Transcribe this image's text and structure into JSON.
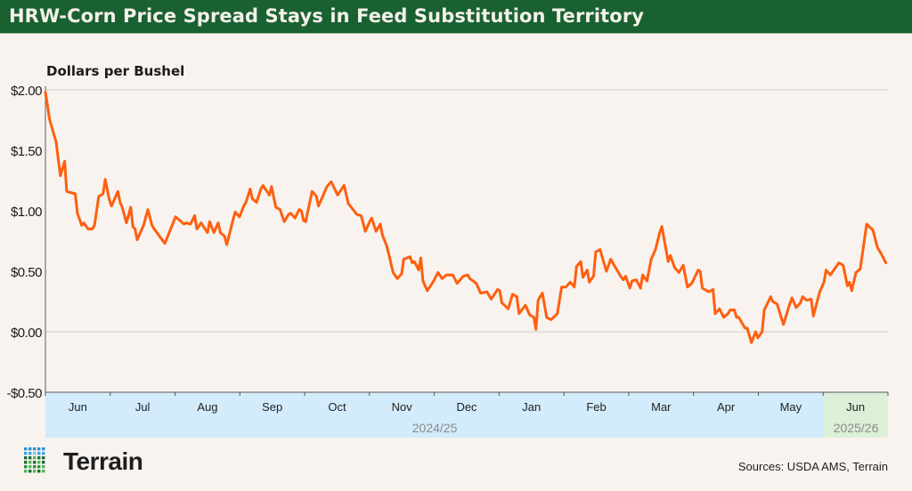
{
  "header": {
    "title": "HRW-Corn Price Spread Stays in Feed Substitution Territory"
  },
  "footer": {
    "logo_text": "Terrain",
    "sources": "Sources: USDA AMS, Terrain"
  },
  "colors": {
    "line": "#ff5f0f",
    "title_bar": "#1a6131",
    "band_2024": "#d2ecfb",
    "band_2025": "#dcf0d8",
    "grid": "#dedad6",
    "background": "#f8f3ef"
  },
  "chart_data": {
    "type": "line",
    "title": "HRW-Corn Price Spread Stays in Feed Substitution Territory",
    "ylabel": "Dollars per Bushel",
    "ylim": [
      -0.5,
      2.0
    ],
    "yticks": [
      2.0,
      1.5,
      1.0,
      0.5,
      0.0,
      -0.5
    ],
    "ytick_labels": [
      "$2.00",
      "$1.50",
      "$1.00",
      "$0.50",
      "$0.00",
      "-$0.50"
    ],
    "gridlines": [
      2.0,
      0.0
    ],
    "xlim": [
      "2024-06-01",
      "2025-07-01"
    ],
    "month_labels": [
      "Jun",
      "Jul",
      "Aug",
      "Sep",
      "Oct",
      "Nov",
      "Dec",
      "Jan",
      "Feb",
      "Mar",
      "Apr",
      "May",
      "Jun"
    ],
    "marketing_years": [
      {
        "label": "2024/25",
        "start": "2024-06-01",
        "end": "2025-06-01"
      },
      {
        "label": "2025/26",
        "start": "2025-06-01",
        "end": "2025-07-01"
      }
    ],
    "points": [
      [
        "2024-06-01",
        1.98
      ],
      [
        "2024-06-03",
        1.75
      ],
      [
        "2024-06-06",
        1.57
      ],
      [
        "2024-06-08",
        1.29
      ],
      [
        "2024-06-10",
        1.41
      ],
      [
        "2024-06-11",
        1.16
      ],
      [
        "2024-06-15",
        1.14
      ],
      [
        "2024-06-16",
        0.98
      ],
      [
        "2024-06-18",
        0.88
      ],
      [
        "2024-06-19",
        0.9
      ],
      [
        "2024-06-21",
        0.85
      ],
      [
        "2024-06-23",
        0.85
      ],
      [
        "2024-06-24",
        0.88
      ],
      [
        "2024-06-26",
        1.12
      ],
      [
        "2024-06-28",
        1.14
      ],
      [
        "2024-06-29",
        1.26
      ],
      [
        "2024-07-01",
        1.09
      ],
      [
        "2024-07-02",
        1.04
      ],
      [
        "2024-07-05",
        1.16
      ],
      [
        "2024-07-06",
        1.07
      ],
      [
        "2024-07-07",
        1.03
      ],
      [
        "2024-07-09",
        0.9
      ],
      [
        "2024-07-11",
        1.03
      ],
      [
        "2024-07-12",
        0.87
      ],
      [
        "2024-07-13",
        0.85
      ],
      [
        "2024-07-14",
        0.76
      ],
      [
        "2024-07-17",
        0.88
      ],
      [
        "2024-07-19",
        1.01
      ],
      [
        "2024-07-21",
        0.88
      ],
      [
        "2024-07-22",
        0.85
      ],
      [
        "2024-07-27",
        0.73
      ],
      [
        "2024-08-01",
        0.95
      ],
      [
        "2024-08-05",
        0.89
      ],
      [
        "2024-08-06",
        0.9
      ],
      [
        "2024-08-08",
        0.89
      ],
      [
        "2024-08-10",
        0.96
      ],
      [
        "2024-08-11",
        0.85
      ],
      [
        "2024-08-13",
        0.9
      ],
      [
        "2024-08-16",
        0.82
      ],
      [
        "2024-08-17",
        0.91
      ],
      [
        "2024-08-19",
        0.82
      ],
      [
        "2024-08-21",
        0.9
      ],
      [
        "2024-08-22",
        0.82
      ],
      [
        "2024-08-24",
        0.79
      ],
      [
        "2024-08-25",
        0.72
      ],
      [
        "2024-08-28",
        0.93
      ],
      [
        "2024-08-29",
        0.99
      ],
      [
        "2024-08-31",
        0.95
      ],
      [
        "2024-09-02",
        1.04
      ],
      [
        "2024-09-03",
        1.07
      ],
      [
        "2024-09-05",
        1.18
      ],
      [
        "2024-09-06",
        1.1
      ],
      [
        "2024-09-08",
        1.07
      ],
      [
        "2024-09-10",
        1.18
      ],
      [
        "2024-09-11",
        1.21
      ],
      [
        "2024-09-14",
        1.13
      ],
      [
        "2024-09-15",
        1.2
      ],
      [
        "2024-09-17",
        1.03
      ],
      [
        "2024-09-19",
        1.01
      ],
      [
        "2024-09-21",
        0.91
      ],
      [
        "2024-09-23",
        0.97
      ],
      [
        "2024-09-24",
        0.98
      ],
      [
        "2024-09-26",
        0.94
      ],
      [
        "2024-09-28",
        1.01
      ],
      [
        "2024-09-29",
        1.0
      ],
      [
        "2024-09-30",
        0.92
      ],
      [
        "2024-10-01",
        0.91
      ],
      [
        "2024-10-04",
        1.16
      ],
      [
        "2024-10-06",
        1.12
      ],
      [
        "2024-10-07",
        1.04
      ],
      [
        "2024-10-11",
        1.2
      ],
      [
        "2024-10-13",
        1.24
      ],
      [
        "2024-10-16",
        1.13
      ],
      [
        "2024-10-19",
        1.21
      ],
      [
        "2024-10-21",
        1.06
      ],
      [
        "2024-10-25",
        0.97
      ],
      [
        "2024-10-27",
        0.96
      ],
      [
        "2024-10-29",
        0.83
      ],
      [
        "2024-10-31",
        0.91
      ],
      [
        "2024-11-01",
        0.94
      ],
      [
        "2024-11-03",
        0.83
      ],
      [
        "2024-11-05",
        0.89
      ],
      [
        "2024-11-06",
        0.8
      ],
      [
        "2024-11-08",
        0.71
      ],
      [
        "2024-11-09",
        0.64
      ],
      [
        "2024-11-11",
        0.49
      ],
      [
        "2024-11-13",
        0.44
      ],
      [
        "2024-11-15",
        0.48
      ],
      [
        "2024-11-16",
        0.6
      ],
      [
        "2024-11-19",
        0.62
      ],
      [
        "2024-11-20",
        0.57
      ],
      [
        "2024-11-21",
        0.58
      ],
      [
        "2024-11-23",
        0.51
      ],
      [
        "2024-11-24",
        0.61
      ],
      [
        "2024-11-25",
        0.42
      ],
      [
        "2024-11-27",
        0.34
      ],
      [
        "2024-11-30",
        0.42
      ],
      [
        "2024-12-02",
        0.49
      ],
      [
        "2024-12-04",
        0.44
      ],
      [
        "2024-12-06",
        0.47
      ],
      [
        "2024-12-09",
        0.47
      ],
      [
        "2024-12-11",
        0.4
      ],
      [
        "2024-12-14",
        0.46
      ],
      [
        "2024-12-16",
        0.47
      ],
      [
        "2024-12-17",
        0.44
      ],
      [
        "2024-12-20",
        0.4
      ],
      [
        "2024-12-22",
        0.32
      ],
      [
        "2024-12-25",
        0.33
      ],
      [
        "2024-12-27",
        0.27
      ],
      [
        "2024-12-30",
        0.35
      ],
      [
        "2024-12-31",
        0.34
      ],
      [
        "2025-01-01",
        0.24
      ],
      [
        "2025-01-04",
        0.19
      ],
      [
        "2025-01-06",
        0.31
      ],
      [
        "2025-01-08",
        0.29
      ],
      [
        "2025-01-09",
        0.15
      ],
      [
        "2025-01-12",
        0.22
      ],
      [
        "2025-01-14",
        0.14
      ],
      [
        "2025-01-16",
        0.12
      ],
      [
        "2025-01-17",
        0.02
      ],
      [
        "2025-01-18",
        0.26
      ],
      [
        "2025-01-20",
        0.32
      ],
      [
        "2025-01-22",
        0.12
      ],
      [
        "2025-01-24",
        0.1
      ],
      [
        "2025-01-27",
        0.15
      ],
      [
        "2025-01-29",
        0.37
      ],
      [
        "2025-01-31",
        0.37
      ],
      [
        "2025-02-02",
        0.41
      ],
      [
        "2025-02-04",
        0.37
      ],
      [
        "2025-02-05",
        0.54
      ],
      [
        "2025-02-07",
        0.58
      ],
      [
        "2025-02-08",
        0.45
      ],
      [
        "2025-02-10",
        0.51
      ],
      [
        "2025-02-11",
        0.41
      ],
      [
        "2025-02-13",
        0.46
      ],
      [
        "2025-02-14",
        0.66
      ],
      [
        "2025-02-16",
        0.68
      ],
      [
        "2025-02-19",
        0.5
      ],
      [
        "2025-02-21",
        0.6
      ],
      [
        "2025-02-23",
        0.54
      ],
      [
        "2025-02-24",
        0.51
      ],
      [
        "2025-02-26",
        0.45
      ],
      [
        "2025-02-27",
        0.43
      ],
      [
        "2025-02-28",
        0.46
      ],
      [
        "2025-03-02",
        0.36
      ],
      [
        "2025-03-03",
        0.42
      ],
      [
        "2025-03-05",
        0.43
      ],
      [
        "2025-03-07",
        0.36
      ],
      [
        "2025-03-08",
        0.47
      ],
      [
        "2025-03-10",
        0.42
      ],
      [
        "2025-03-12",
        0.6
      ],
      [
        "2025-03-14",
        0.68
      ],
      [
        "2025-03-16",
        0.82
      ],
      [
        "2025-03-17",
        0.87
      ],
      [
        "2025-03-20",
        0.58
      ],
      [
        "2025-03-21",
        0.63
      ],
      [
        "2025-03-23",
        0.53
      ],
      [
        "2025-03-25",
        0.49
      ],
      [
        "2025-03-27",
        0.55
      ],
      [
        "2025-03-29",
        0.37
      ],
      [
        "2025-03-31",
        0.4
      ],
      [
        "2025-04-03",
        0.51
      ],
      [
        "2025-04-04",
        0.5
      ],
      [
        "2025-04-05",
        0.36
      ],
      [
        "2025-04-08",
        0.33
      ],
      [
        "2025-04-10",
        0.35
      ],
      [
        "2025-04-11",
        0.15
      ],
      [
        "2025-04-13",
        0.19
      ],
      [
        "2025-04-15",
        0.12
      ],
      [
        "2025-04-17",
        0.15
      ],
      [
        "2025-04-18",
        0.18
      ],
      [
        "2025-04-20",
        0.18
      ],
      [
        "2025-04-21",
        0.12
      ],
      [
        "2025-04-22",
        0.12
      ],
      [
        "2025-04-25",
        0.03
      ],
      [
        "2025-04-26",
        0.03
      ],
      [
        "2025-04-28",
        -0.09
      ],
      [
        "2025-04-30",
        0.0
      ],
      [
        "2025-05-01",
        -0.05
      ],
      [
        "2025-05-03",
        0.0
      ],
      [
        "2025-05-04",
        0.18
      ],
      [
        "2025-05-07",
        0.29
      ],
      [
        "2025-05-08",
        0.25
      ],
      [
        "2025-05-10",
        0.23
      ],
      [
        "2025-05-13",
        0.06
      ],
      [
        "2025-05-16",
        0.23
      ],
      [
        "2025-05-17",
        0.28
      ],
      [
        "2025-05-19",
        0.2
      ],
      [
        "2025-05-21",
        0.24
      ],
      [
        "2025-05-22",
        0.29
      ],
      [
        "2025-05-24",
        0.26
      ],
      [
        "2025-05-26",
        0.27
      ],
      [
        "2025-05-27",
        0.13
      ],
      [
        "2025-05-30",
        0.33
      ],
      [
        "2025-06-01",
        0.41
      ],
      [
        "2025-06-02",
        0.51
      ],
      [
        "2025-06-04",
        0.47
      ],
      [
        "2025-06-08",
        0.57
      ],
      [
        "2025-06-10",
        0.55
      ],
      [
        "2025-06-12",
        0.38
      ],
      [
        "2025-06-13",
        0.41
      ],
      [
        "2025-06-14",
        0.34
      ],
      [
        "2025-06-16",
        0.49
      ],
      [
        "2025-06-18",
        0.52
      ],
      [
        "2025-06-21",
        0.89
      ],
      [
        "2025-06-24",
        0.84
      ],
      [
        "2025-06-26",
        0.7
      ],
      [
        "2025-06-28",
        0.64
      ],
      [
        "2025-06-30",
        0.57
      ]
    ]
  }
}
